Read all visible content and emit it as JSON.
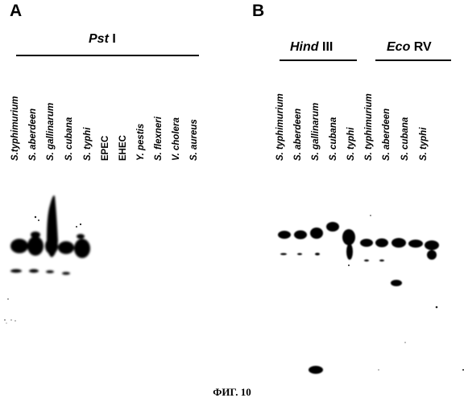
{
  "panel_a": {
    "letter": "A",
    "enzyme_italic": "Pst",
    "enzyme_roman": " I",
    "lanes": [
      "S.typhimurium",
      "S. aberdeen",
      "S. gallinarum",
      "S. cubana",
      "S. typhi",
      "EPEC",
      "EHEC",
      "Y. pestis",
      "S. flexneri",
      "V. cholera",
      "S. aureus"
    ]
  },
  "panel_b": {
    "letter": "B",
    "group1_italic": "Hind",
    "group1_roman": " III",
    "group2_italic": "Eco",
    "group2_roman": " RV",
    "lanes": [
      "S. typhimurium",
      "S. aberdeen",
      "S. gallinarum",
      "S. cubana",
      "S. typhi",
      "S. typhimurium",
      "S. aberdeen",
      "S. cubana",
      "S. typhi"
    ]
  },
  "caption": "ФИГ. 10"
}
